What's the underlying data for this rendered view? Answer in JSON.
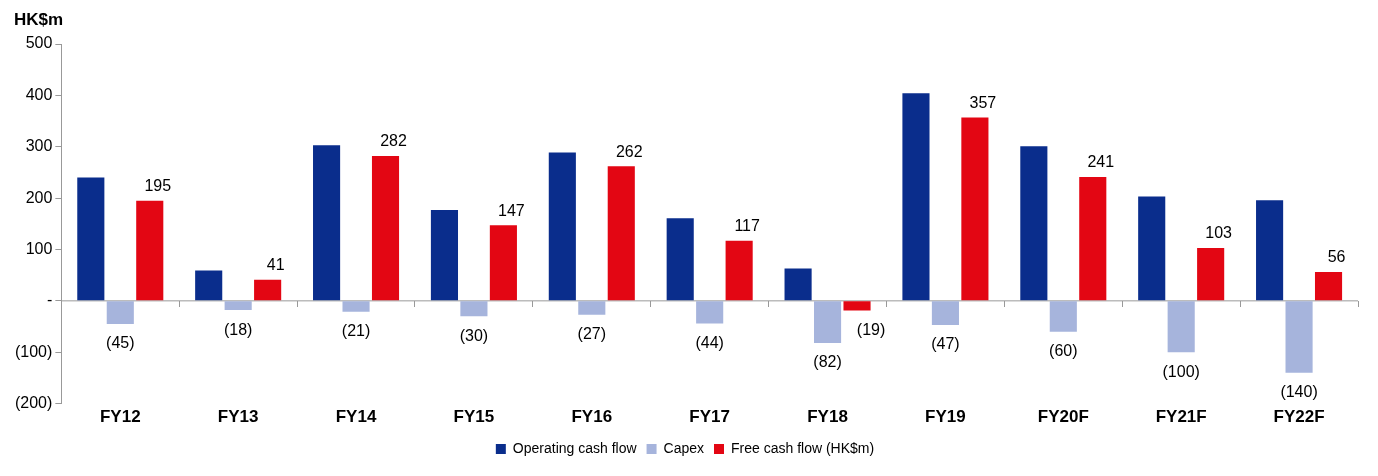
{
  "chart_data": {
    "type": "bar",
    "ylabel": "HK$m",
    "categories": [
      "FY12",
      "FY13",
      "FY14",
      "FY15",
      "FY16",
      "FY17",
      "FY18",
      "FY19",
      "FY20F",
      "FY21F",
      "FY22F"
    ],
    "series": [
      {
        "name": "Operating cash flow",
        "color": "#0a2d8c",
        "values": [
          240,
          59,
          303,
          177,
          289,
          161,
          63,
          404,
          301,
          203,
          196
        ]
      },
      {
        "name": "Capex",
        "color": "#a6b4dc",
        "values": [
          -45,
          -18,
          -21,
          -30,
          -27,
          -44,
          -82,
          -47,
          -60,
          -100,
          -140
        ],
        "value_labels": [
          "(45)",
          "(18)",
          "(21)",
          "(30)",
          "(27)",
          "(44)",
          "(82)",
          "(47)",
          "(60)",
          "(100)",
          "(140)"
        ]
      },
      {
        "name": "Free cash flow (HK$m)",
        "color": "#e30613",
        "values": [
          195,
          41,
          282,
          147,
          262,
          117,
          -19,
          357,
          241,
          103,
          56
        ],
        "value_labels": [
          "195",
          "41",
          "282",
          "147",
          "262",
          "117",
          "(19)",
          "357",
          "241",
          "103",
          "56"
        ]
      }
    ],
    "ylim": [
      -200,
      500
    ],
    "yticks": [
      {
        "value": -200,
        "label": "(200)"
      },
      {
        "value": -100,
        "label": "(100)"
      },
      {
        "value": 0,
        "label": "-"
      },
      100,
      200,
      300,
      400,
      500
    ],
    "ref_lines": [
      {
        "axis": "y",
        "value": 0,
        "color": "#999999"
      }
    ],
    "grid": false,
    "legend": "bottom"
  }
}
